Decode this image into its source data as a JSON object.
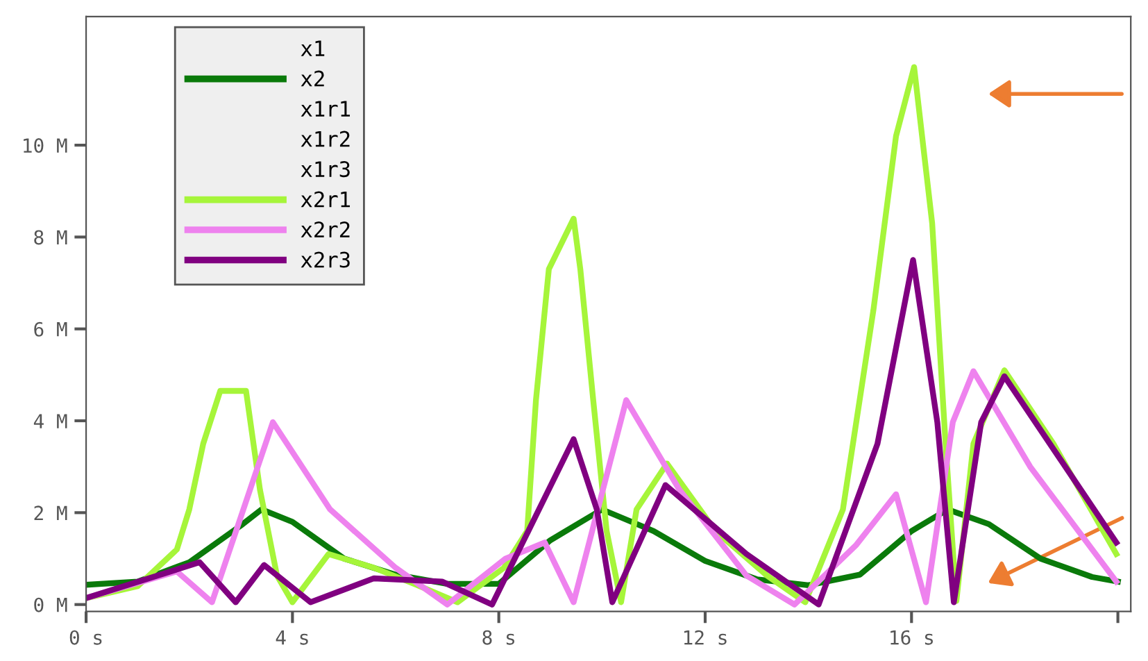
{
  "chart_data": {
    "type": "line",
    "xlim": [
      0,
      20.25
    ],
    "ylim": [
      -0.15,
      12.8
    ],
    "xticks": [
      {
        "value": 0,
        "label": "0 s"
      },
      {
        "value": 4,
        "label": "4 s"
      },
      {
        "value": 8,
        "label": "8 s"
      },
      {
        "value": 12,
        "label": "12 s"
      },
      {
        "value": 16,
        "label": "16 s"
      },
      {
        "value": 20,
        "label": null
      }
    ],
    "yticks": [
      {
        "value": 0,
        "label": "0 M"
      },
      {
        "value": 2,
        "label": "2 M"
      },
      {
        "value": 4,
        "label": "4 M"
      },
      {
        "value": 6,
        "label": "6 M"
      },
      {
        "value": 8,
        "label": "8 M"
      },
      {
        "value": 10,
        "label": "10 M"
      }
    ],
    "legend": "top left",
    "grid": false,
    "marker": "none",
    "line_style": "solid",
    "series": [
      {
        "name": "x1",
        "color": null
      },
      {
        "name": "x2",
        "color": "#0a7a0a",
        "x": [
          0,
          1,
          2,
          3,
          3.4,
          4,
          5,
          6,
          7,
          8,
          9,
          10,
          11,
          12,
          13,
          14,
          15,
          16,
          16.7,
          17.5,
          18.5,
          19.5,
          20
        ],
        "values": [
          0.43,
          0.5,
          0.92,
          1.72,
          2.07,
          1.8,
          1.0,
          0.65,
          0.45,
          0.45,
          1.4,
          2.07,
          1.6,
          0.95,
          0.55,
          0.42,
          0.65,
          1.6,
          2.07,
          1.75,
          1.0,
          0.6,
          0.5
        ]
      },
      {
        "name": "x1r1",
        "color": null
      },
      {
        "name": "x1r2",
        "color": null
      },
      {
        "name": "x1r3",
        "color": null
      },
      {
        "name": "x2r1",
        "color": "#a6f53a",
        "x": [
          0,
          1,
          1.76,
          2.0,
          2.27,
          2.6,
          3.1,
          3.37,
          3.7,
          4.0,
          4.7,
          5.58,
          6.4,
          7.2,
          8.1,
          8.55,
          8.72,
          8.97,
          9.45,
          9.58,
          9.83,
          10.09,
          10.37,
          10.67,
          11.26,
          12.2,
          13.2,
          13.94,
          14.67,
          15.26,
          15.7,
          16.05,
          16.4,
          16.66,
          16.87,
          17.2,
          17.8,
          18.75,
          19.97
        ],
        "values": [
          0.14,
          0.4,
          1.2,
          2.07,
          3.5,
          4.65,
          4.65,
          2.5,
          0.63,
          0.05,
          1.1,
          0.8,
          0.43,
          0.05,
          0.8,
          1.6,
          4.45,
          7.3,
          8.4,
          7.3,
          4.45,
          1.6,
          0.05,
          2.07,
          3.07,
          1.6,
          0.63,
          0.05,
          2.07,
          6.4,
          10.2,
          11.7,
          8.3,
          3.5,
          0.08,
          3.5,
          5.1,
          3.5,
          1.1
        ]
      },
      {
        "name": "x2r2",
        "color": "#ee82ee",
        "x": [
          0,
          1.76,
          2.44,
          3.62,
          4.73,
          6.0,
          7.0,
          8.13,
          8.89,
          9.45,
          10.47,
          11.5,
          12.8,
          13.73,
          14.93,
          15.7,
          16.28,
          16.8,
          17.2,
          18.3,
          19.97
        ],
        "values": [
          0.14,
          0.72,
          0.05,
          3.97,
          2.07,
          0.8,
          0.0,
          1.0,
          1.35,
          0.05,
          4.45,
          2.5,
          0.63,
          0.0,
          1.3,
          2.4,
          0.05,
          3.97,
          5.08,
          3.0,
          0.5
        ]
      },
      {
        "name": "x2r3",
        "color": "#800080",
        "x": [
          0,
          2.2,
          2.9,
          3.45,
          4.35,
          5.58,
          6.9,
          7.87,
          9.45,
          9.9,
          10.2,
          11.23,
          12.8,
          14.2,
          15.34,
          16.03,
          16.5,
          16.82,
          17.35,
          17.8,
          19.97
        ],
        "values": [
          0.14,
          0.92,
          0.05,
          0.86,
          0.05,
          0.57,
          0.5,
          0.0,
          3.6,
          2.07,
          0.05,
          2.6,
          1.1,
          0.0,
          3.5,
          7.5,
          3.97,
          0.05,
          3.97,
          4.97,
          1.35
        ]
      }
    ]
  }
}
